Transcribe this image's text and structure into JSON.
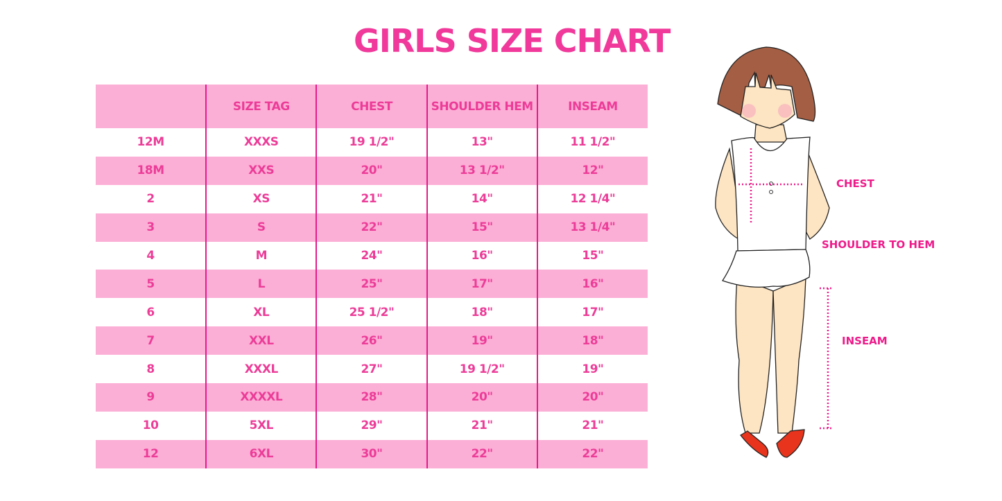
{
  "title": "GIRLS SIZE CHART",
  "table": {
    "headers": [
      "",
      "SIZE TAG",
      "CHEST",
      "SHOULDER HEM",
      "INSEAM"
    ],
    "rows": [
      [
        "12M",
        "XXXS",
        "19 1/2\"",
        "13\"",
        "11 1/2\""
      ],
      [
        "18M",
        "XXS",
        "20\"",
        "13 1/2\"",
        "12\""
      ],
      [
        "2",
        "XS",
        "21\"",
        "14\"",
        "12 1/4\""
      ],
      [
        "3",
        "S",
        "22\"",
        "15\"",
        "13 1/4\""
      ],
      [
        "4",
        "M",
        "24\"",
        "16\"",
        "15\""
      ],
      [
        "5",
        "L",
        "25\"",
        "17\"",
        "16\""
      ],
      [
        "6",
        "XL",
        "25 1/2\"",
        "18\"",
        "17\""
      ],
      [
        "7",
        "XXL",
        "26\"",
        "19\"",
        "18\""
      ],
      [
        "8",
        "XXXL",
        "27\"",
        "19 1/2\"",
        "19\""
      ],
      [
        "9",
        "XXXXL",
        "28\"",
        "20\"",
        "20\""
      ],
      [
        "10",
        "5XL",
        "29\"",
        "21\"",
        "21\""
      ],
      [
        "12",
        "6XL",
        "30\"",
        "22\"",
        "22\""
      ]
    ]
  },
  "figure": {
    "labels": {
      "chest": "CHEST",
      "shoulder_to_hem": "SHOULDER TO HEM",
      "inseam": "INSEAM"
    }
  },
  "colors": {
    "accent": "#ee3c9a",
    "row_pink": "#fcafd6",
    "divider": "#e41a8a"
  }
}
